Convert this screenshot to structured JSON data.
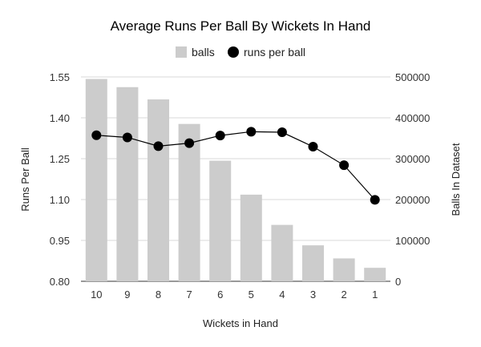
{
  "chart_data": {
    "type": "bar",
    "title": "Average Runs Per Ball By Wickets In Hand",
    "xlabel": "Wickets in Hand",
    "ylabel_left": "Runs Per Ball",
    "ylabel_right": "Balls In Dataset",
    "categories": [
      "10",
      "9",
      "8",
      "7",
      "6",
      "5",
      "4",
      "3",
      "2",
      "1"
    ],
    "series": [
      {
        "name": "balls",
        "type": "bar",
        "axis": "right",
        "color": "#cccccc",
        "values": [
          495000,
          475000,
          445000,
          385000,
          295000,
          212000,
          138000,
          88000,
          56000,
          33000
        ]
      },
      {
        "name": "runs per ball",
        "type": "line",
        "axis": "left",
        "color": "#000000",
        "values": [
          1.336,
          1.328,
          1.296,
          1.307,
          1.335,
          1.349,
          1.347,
          1.294,
          1.226,
          1.099
        ]
      }
    ],
    "y_left": {
      "ticks": [
        "0.80",
        "0.95",
        "1.10",
        "1.25",
        "1.40",
        "1.55"
      ],
      "range": [
        0.8,
        1.55
      ]
    },
    "y_right": {
      "ticks": [
        "0",
        "100000",
        "200000",
        "300000",
        "400000",
        "500000"
      ],
      "range": [
        0,
        500000
      ]
    },
    "legend_position": "top-center",
    "grid": true
  }
}
